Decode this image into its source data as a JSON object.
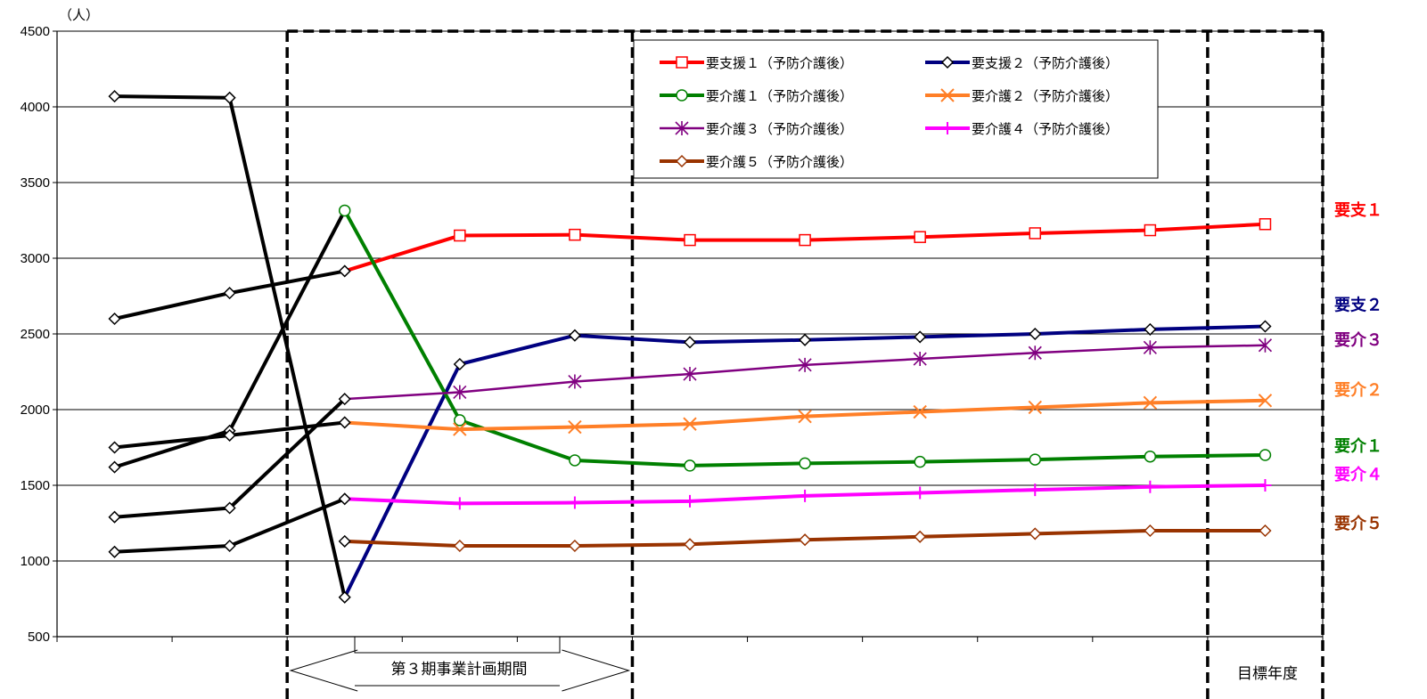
{
  "chart_data": {
    "type": "line",
    "unit_label": "（人）",
    "ylim": [
      500,
      4500
    ],
    "yticks": [
      500,
      1000,
      1500,
      2000,
      2500,
      3000,
      3500,
      4000,
      4500
    ],
    "x_count": 11,
    "grid": true,
    "legend_position": "top-right",
    "period_label": "第３期事業計画期間",
    "target_label": "目標年度",
    "series": [
      {
        "name": "要支援１（予防介護後）",
        "color": "#ff0000",
        "marker": "square",
        "values": [
          2600,
          2770,
          2915,
          3150,
          3155,
          3120,
          3120,
          3140,
          3165,
          3185,
          3225
        ]
      },
      {
        "name": "要支援２（予防介護後）",
        "color": "#000080",
        "marker": "diamond",
        "values": [
          4070,
          4060,
          760,
          2300,
          2490,
          2445,
          2460,
          2480,
          2500,
          2530,
          2550
        ]
      },
      {
        "name": "要介護１（予防介護後）",
        "color": "#008000",
        "marker": "circle",
        "values": [
          1620,
          1860,
          3315,
          1930,
          1665,
          1630,
          1645,
          1655,
          1670,
          1690,
          1700
        ]
      },
      {
        "name": "要介護２（予防介護後）",
        "color": "#ff7f27",
        "marker": "x",
        "values": [
          1750,
          1830,
          1915,
          1870,
          1885,
          1905,
          1955,
          1985,
          2015,
          2045,
          2060
        ]
      },
      {
        "name": "要介護３（予防介護後）",
        "color": "#800080",
        "marker": "star",
        "values": [
          1290,
          1350,
          2070,
          2115,
          2185,
          2235,
          2295,
          2335,
          2375,
          2410,
          2425
        ]
      },
      {
        "name": "要介護４（予防介護後）",
        "color": "#ff00ff",
        "marker": "plus",
        "values": [
          1060,
          1100,
          1410,
          1380,
          1385,
          1395,
          1430,
          1450,
          1470,
          1490,
          1500
        ]
      },
      {
        "name": "要介護５（予防介護後）",
        "color": "#993300",
        "marker": "diamond",
        "values": [
          null,
          null,
          1130,
          1100,
          1100,
          1110,
          1140,
          1160,
          1180,
          1200,
          1200
        ]
      }
    ],
    "history": {
      "color": "#000000",
      "lines": [
        [
          2600,
          2770,
          2915
        ],
        [
          4070,
          4060,
          760
        ],
        [
          1620,
          1860,
          3315
        ],
        [
          1750,
          1830,
          1915
        ],
        [
          1290,
          1350,
          2070
        ],
        [
          1060,
          1100,
          1410
        ],
        [
          null,
          null,
          1130
        ]
      ]
    },
    "right_labels": [
      {
        "text": "要支１",
        "color": "#ff0000",
        "series": 0
      },
      {
        "text": "要支２",
        "color": "#000080",
        "series": 1
      },
      {
        "text": "要介３",
        "color": "#800080",
        "series": 4
      },
      {
        "text": "要介２",
        "color": "#ff7f27",
        "series": 3
      },
      {
        "text": "要介１",
        "color": "#008000",
        "series": 2
      },
      {
        "text": "要介４",
        "color": "#ff00ff",
        "series": 5
      },
      {
        "text": "要介５",
        "color": "#993300",
        "series": 6
      }
    ]
  }
}
